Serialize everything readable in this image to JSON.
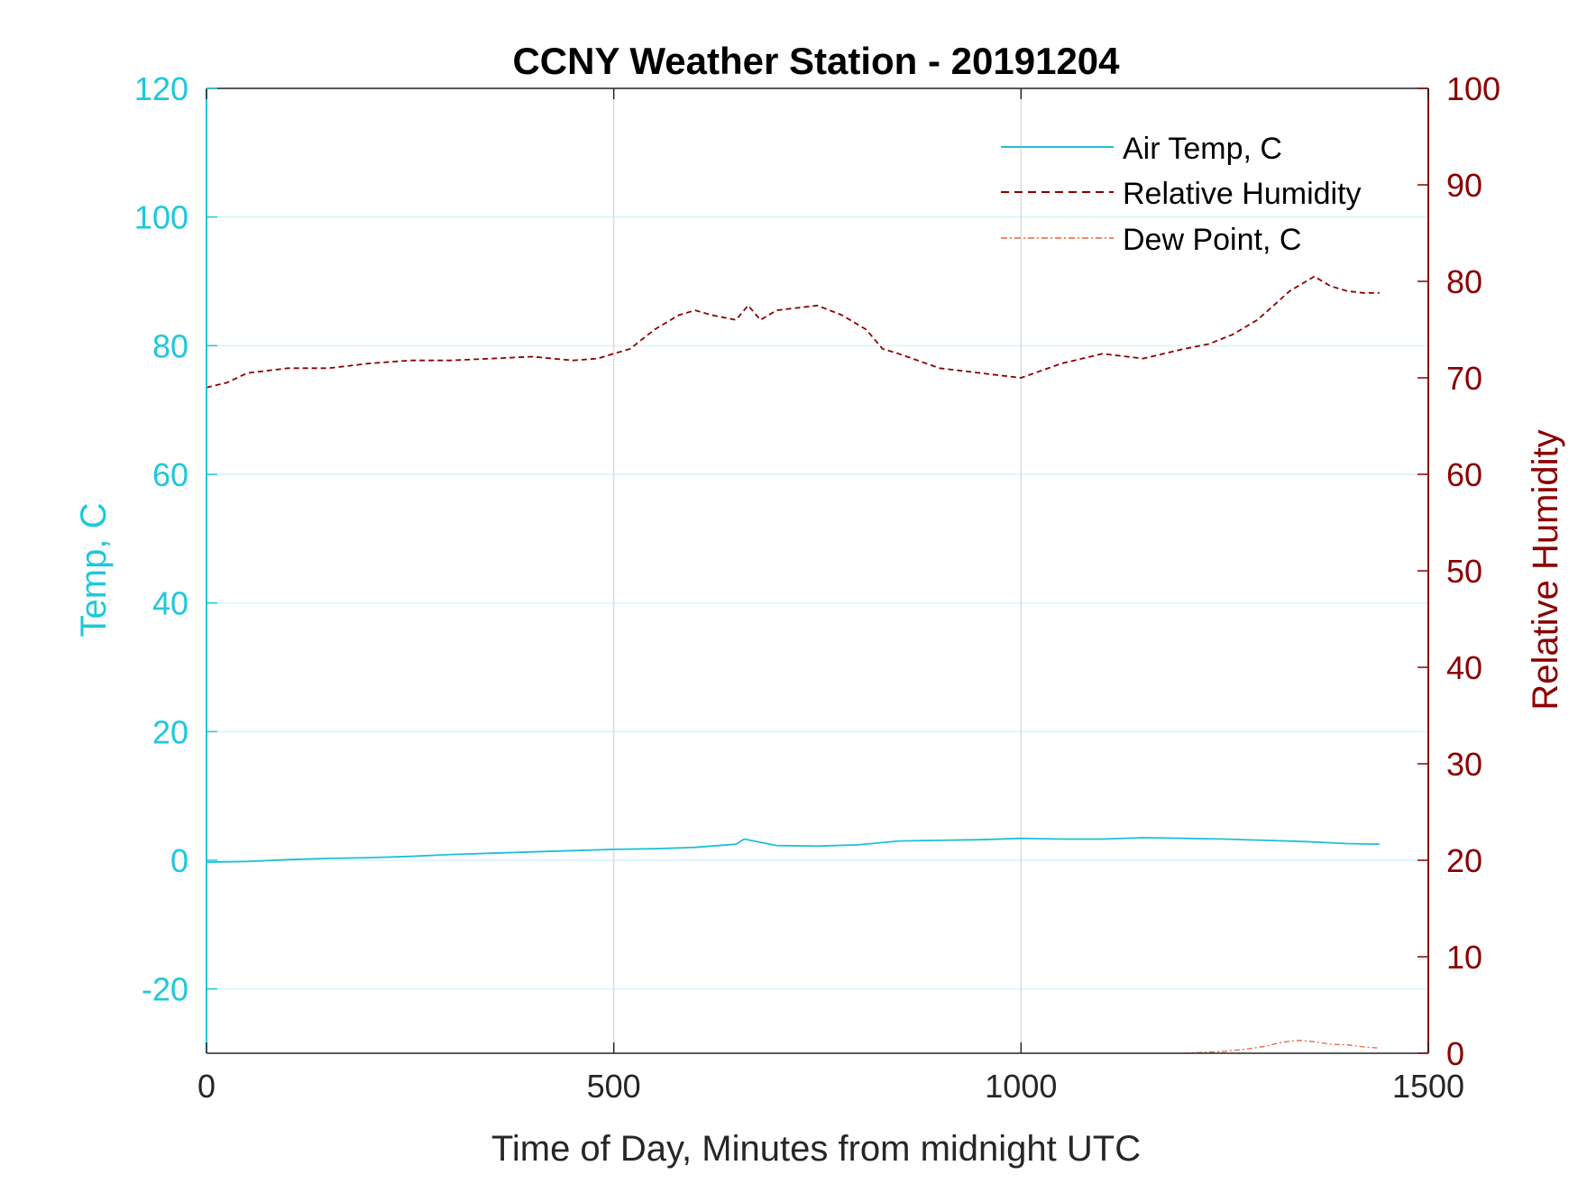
{
  "chart_data": {
    "type": "line",
    "title": "CCNY Weather Station - 20191204",
    "xlabel": "Time of Day, Minutes from midnight UTC",
    "ylabel_left": "Temp, C",
    "ylabel_right": "Relative Humidity",
    "xlim": [
      0,
      1500
    ],
    "ylim_left": [
      -30,
      120
    ],
    "ylim_right": [
      0,
      100
    ],
    "x_ticks": [
      "0",
      "500",
      "1000",
      "1500"
    ],
    "y_ticks_left": [
      "-20",
      "0",
      "20",
      "40",
      "60",
      "80",
      "100",
      "120"
    ],
    "y_ticks_right": [
      "0",
      "10",
      "20",
      "30",
      "40",
      "50",
      "60",
      "70",
      "80",
      "90",
      "100"
    ],
    "grid": true,
    "legend_position": "top-right",
    "colors": {
      "left_axis": "#1ec8dc",
      "right_axis": "#8b0000",
      "air_temp": "#1ec0d8",
      "humidity": "#8b0000",
      "dew_point": "#e8643c",
      "grid_vertical": "#d6dde4",
      "grid_horizontal": "#d8f4fa"
    },
    "series": [
      {
        "name": "Air Temp, C",
        "axis": "left",
        "style": "solid",
        "x": [
          0,
          50,
          100,
          150,
          200,
          250,
          300,
          350,
          400,
          450,
          500,
          550,
          600,
          650,
          660,
          700,
          750,
          800,
          850,
          900,
          950,
          1000,
          1050,
          1100,
          1150,
          1200,
          1250,
          1300,
          1350,
          1400,
          1440
        ],
        "y": [
          -0.3,
          -0.2,
          0.1,
          0.3,
          0.4,
          0.6,
          0.9,
          1.1,
          1.3,
          1.5,
          1.7,
          1.8,
          2.0,
          2.5,
          3.3,
          2.3,
          2.2,
          2.4,
          3.0,
          3.1,
          3.2,
          3.4,
          3.3,
          3.3,
          3.5,
          3.4,
          3.3,
          3.1,
          2.9,
          2.6,
          2.5
        ]
      },
      {
        "name": "Relative Humidity",
        "axis": "right",
        "style": "dashed",
        "x": [
          0,
          25,
          50,
          100,
          150,
          200,
          250,
          300,
          350,
          400,
          450,
          480,
          520,
          550,
          580,
          600,
          620,
          650,
          665,
          680,
          700,
          750,
          780,
          810,
          830,
          850,
          900,
          950,
          1000,
          1050,
          1100,
          1150,
          1200,
          1230,
          1260,
          1290,
          1310,
          1330,
          1350,
          1360,
          1380,
          1400,
          1420,
          1440
        ],
        "y": [
          69.0,
          69.5,
          70.5,
          71.0,
          71.0,
          71.5,
          71.8,
          71.8,
          72.0,
          72.2,
          71.8,
          72.0,
          73.0,
          75.0,
          76.5,
          77.0,
          76.5,
          76.0,
          77.5,
          76.0,
          77.0,
          77.5,
          76.5,
          75.0,
          73.0,
          72.5,
          71.0,
          70.5,
          70.0,
          71.5,
          72.5,
          72.0,
          73.0,
          73.5,
          74.5,
          76.0,
          77.5,
          79.0,
          80.0,
          80.5,
          79.5,
          79.0,
          78.8,
          78.8
        ]
      },
      {
        "name": "Dew Point, C",
        "axis": "left",
        "style": "dash-dot",
        "x": [
          1200,
          1250,
          1280,
          1300,
          1320,
          1340,
          1360,
          1380,
          1400,
          1420,
          1440
        ],
        "y": [
          -30.0,
          -29.7,
          -29.3,
          -28.9,
          -28.3,
          -28.0,
          -28.2,
          -28.6,
          -28.7,
          -29.0,
          -29.2
        ]
      }
    ]
  }
}
